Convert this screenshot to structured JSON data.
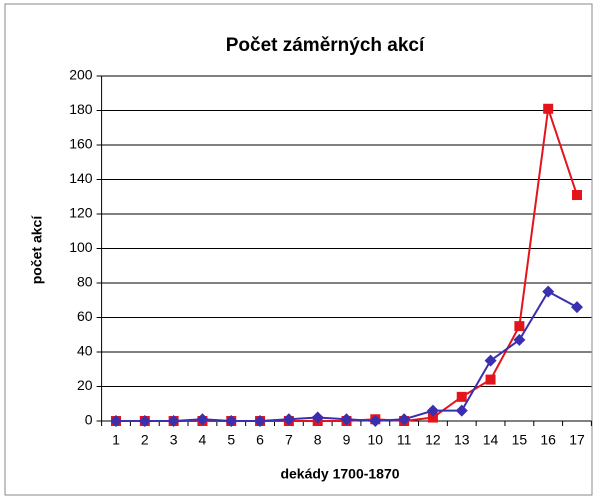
{
  "chart_data": {
    "type": "line",
    "title": "Počet záměrných akcí",
    "xlabel": "dekády 1700-1870",
    "ylabel": "počet akcí",
    "categories": [
      "1",
      "2",
      "3",
      "4",
      "5",
      "6",
      "7",
      "8",
      "9",
      "10",
      "11",
      "12",
      "13",
      "14",
      "15",
      "16",
      "17"
    ],
    "series": [
      {
        "color": "#e3141c",
        "marker": "square",
        "values": [
          0,
          0,
          0,
          0,
          0,
          0,
          0,
          0,
          0,
          1,
          0,
          2,
          14,
          24,
          55,
          181,
          131
        ]
      },
      {
        "color": "#3a2fae",
        "marker": "diamond",
        "values": [
          0,
          0,
          0,
          1,
          0,
          0,
          1,
          2,
          1,
          0,
          1,
          6,
          6,
          35,
          47,
          75,
          66
        ]
      }
    ],
    "ylim": [
      0,
      200
    ],
    "yticks": [
      0,
      20,
      40,
      60,
      80,
      100,
      120,
      140,
      160,
      180,
      200
    ],
    "grid": true
  }
}
